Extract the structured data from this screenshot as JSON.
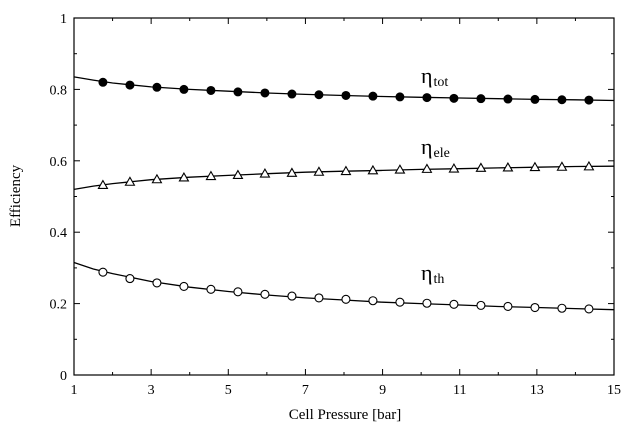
{
  "chart_data": {
    "type": "line",
    "title": "",
    "xlabel": "Cell Pressure  [bar]",
    "ylabel": "Efficiency",
    "xlim": [
      1,
      15
    ],
    "ylim": [
      0,
      1
    ],
    "x_ticks": [
      1,
      3,
      5,
      7,
      9,
      11,
      13,
      15
    ],
    "x_tick_labels": [
      "1",
      "3",
      "5",
      "7",
      "9",
      "11",
      "13",
      "15"
    ],
    "y_ticks": [
      0,
      0.2,
      0.4,
      0.6,
      0.8,
      1
    ],
    "y_tick_labels": [
      "0",
      "0.2",
      "0.4",
      "0.6",
      "0.8",
      "1"
    ],
    "grid": false,
    "legend": "none",
    "series": [
      {
        "name": "η",
        "label_main": "η",
        "label_sub": "tot",
        "marker": "filled-circle",
        "x": [
          1.75,
          2.45,
          3.15,
          3.85,
          4.55,
          5.25,
          5.95,
          6.65,
          7.35,
          8.05,
          8.75,
          9.45,
          10.15,
          10.85,
          11.55,
          12.25,
          12.95,
          13.65,
          14.35
        ],
        "y": [
          0.82,
          0.812,
          0.806,
          0.8,
          0.797,
          0.793,
          0.79,
          0.787,
          0.785,
          0.783,
          0.781,
          0.779,
          0.777,
          0.775,
          0.774,
          0.773,
          0.772,
          0.771,
          0.77
        ],
        "curve_x": [
          1.0,
          1.5,
          2.0,
          3.0,
          4.0,
          5.0,
          6.0,
          7.0,
          8.0,
          9.0,
          10.0,
          11.0,
          12.0,
          13.0,
          14.0,
          15.0
        ],
        "curve_y": [
          0.835,
          0.826,
          0.818,
          0.807,
          0.8,
          0.795,
          0.79,
          0.786,
          0.783,
          0.78,
          0.778,
          0.776,
          0.774,
          0.772,
          0.771,
          0.769
        ]
      },
      {
        "name": "η",
        "label_main": "η",
        "label_sub": "ele",
        "marker": "open-triangle",
        "x": [
          1.75,
          2.45,
          3.15,
          3.85,
          4.55,
          5.25,
          5.95,
          6.65,
          7.35,
          8.05,
          8.75,
          9.45,
          10.15,
          10.85,
          11.55,
          12.25,
          12.95,
          13.65,
          14.35
        ],
        "y": [
          0.532,
          0.541,
          0.548,
          0.553,
          0.557,
          0.56,
          0.564,
          0.566,
          0.569,
          0.571,
          0.573,
          0.575,
          0.577,
          0.578,
          0.58,
          0.581,
          0.582,
          0.583,
          0.584
        ],
        "curve_x": [
          1.0,
          1.5,
          2.0,
          3.0,
          4.0,
          5.0,
          6.0,
          7.0,
          8.0,
          9.0,
          10.0,
          11.0,
          12.0,
          13.0,
          14.0,
          15.0
        ],
        "curve_y": [
          0.52,
          0.529,
          0.536,
          0.547,
          0.554,
          0.559,
          0.564,
          0.568,
          0.571,
          0.573,
          0.576,
          0.578,
          0.58,
          0.582,
          0.584,
          0.585
        ]
      },
      {
        "name": "η",
        "label_main": "η",
        "label_sub": "th",
        "marker": "open-circle",
        "x": [
          1.75,
          2.45,
          3.15,
          3.85,
          4.55,
          5.25,
          5.95,
          6.65,
          7.35,
          8.05,
          8.75,
          9.45,
          10.15,
          10.85,
          11.55,
          12.25,
          12.95,
          13.65,
          14.35
        ],
        "y": [
          0.288,
          0.27,
          0.258,
          0.248,
          0.24,
          0.233,
          0.226,
          0.221,
          0.216,
          0.212,
          0.208,
          0.204,
          0.201,
          0.198,
          0.195,
          0.192,
          0.189,
          0.187,
          0.185
        ],
        "curve_x": [
          1.0,
          1.5,
          2.0,
          3.0,
          4.0,
          5.0,
          6.0,
          7.0,
          8.0,
          9.0,
          10.0,
          11.0,
          12.0,
          13.0,
          14.0,
          15.0
        ],
        "curve_y": [
          0.315,
          0.297,
          0.284,
          0.262,
          0.246,
          0.234,
          0.224,
          0.216,
          0.21,
          0.204,
          0.2,
          0.196,
          0.192,
          0.189,
          0.186,
          0.183
        ]
      }
    ]
  }
}
